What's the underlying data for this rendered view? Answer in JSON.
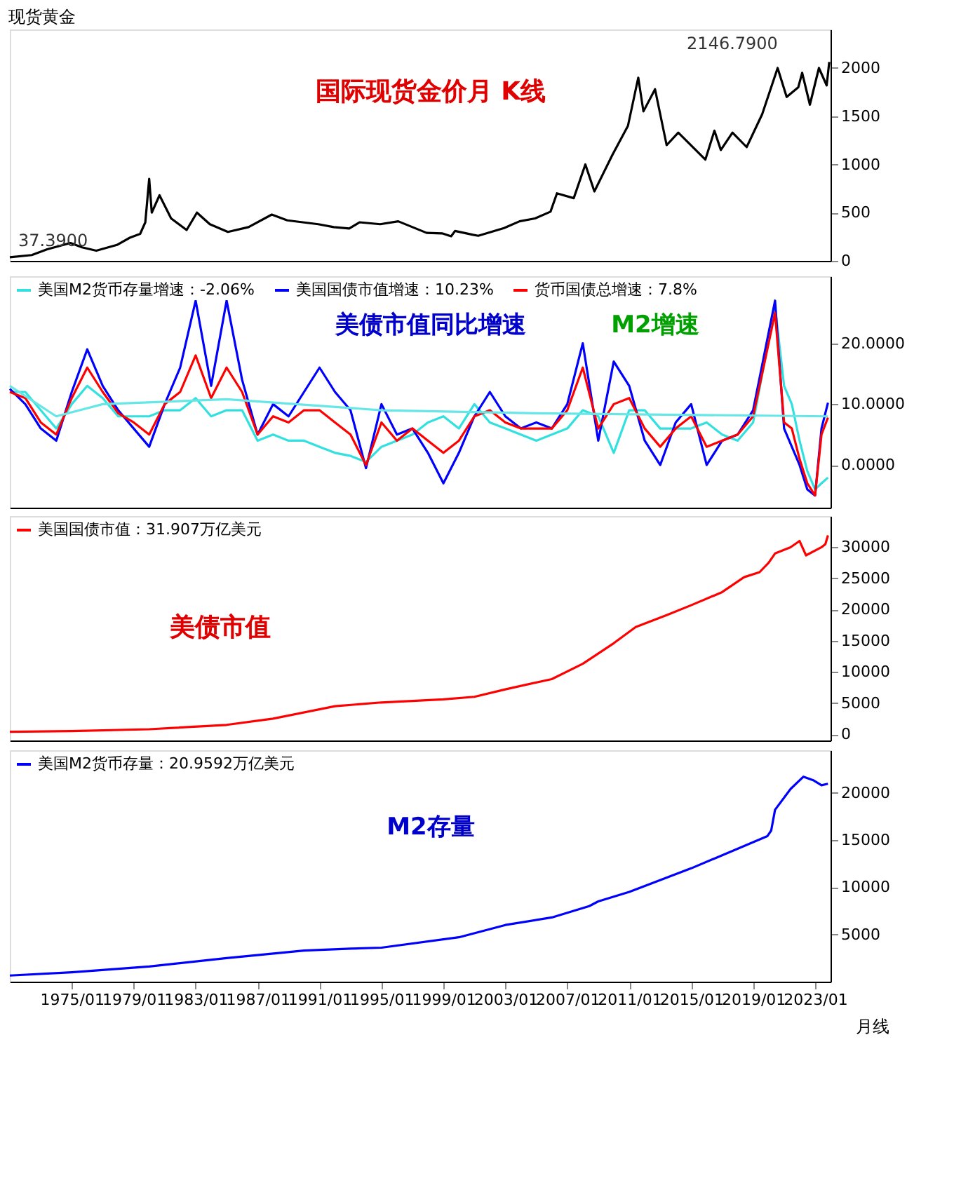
{
  "chart_data": [
    {
      "type": "line",
      "title": "现货黄金",
      "xlim": [
        "1971-01",
        "2024-01"
      ],
      "ylim": [
        0,
        2400
      ],
      "yticks": [
        0,
        500,
        1000,
        1500,
        2000
      ],
      "tick_labels": "y",
      "grid": false,
      "legend": false,
      "annotations": [
        "2146.7900",
        {
          "text": "37.3900",
          "x": "1971-01",
          "y": 37.39
        },
        "国际现货金价月 K线"
      ],
      "series": [
        {
          "color": "#000000",
          "x": [
            "1971-01",
            "1972-06",
            "1973-06",
            "1974-12",
            "1975-09",
            "1976-08",
            "1977-12",
            "1978-10",
            "1979-06",
            "1979-10",
            "1980-01",
            "1980-03",
            "1980-09",
            "1981-06",
            "1982-06",
            "1983-02",
            "1983-12",
            "1985-02",
            "1986-06",
            "1987-12",
            "1988-12",
            "1989-12",
            "1990-12",
            "1991-12",
            "1992-12",
            "1993-08",
            "1994-12",
            "1996-02",
            "1997-12",
            "1998-12",
            "1999-07",
            "1999-10",
            "2000-12",
            "2001-04",
            "2002-12",
            "2003-12",
            "2004-12",
            "2005-12",
            "2006-05",
            "2007-06",
            "2008-03",
            "2008-10",
            "2009-12",
            "2010-12",
            "2011-08",
            "2011-12",
            "2012-09",
            "2013-06",
            "2014-03",
            "2015-12",
            "2016-07",
            "2016-12",
            "2017-09",
            "2018-08",
            "2019-08",
            "2020-08",
            "2021-03",
            "2021-12",
            "2022-03",
            "2022-09",
            "2023-04",
            "2023-10",
            "2023-12"
          ],
          "values": [
            37.39,
            60,
            120,
            185,
            140,
            105,
            165,
            240,
            280,
            400,
            850,
            500,
            680,
            440,
            320,
            500,
            380,
            300,
            350,
            480,
            420,
            400,
            380,
            350,
            335,
            400,
            380,
            410,
            290,
            285,
            255,
            310,
            270,
            260,
            340,
            410,
            440,
            510,
            700,
            650,
            1000,
            720,
            1100,
            1400,
            1900,
            1550,
            1780,
            1200,
            1330,
            1050,
            1350,
            1150,
            1330,
            1180,
            1520,
            2000,
            1700,
            1800,
            1950,
            1620,
            2000,
            1820,
            2063
          ]
        }
      ]
    },
    {
      "type": "line",
      "xlim": [
        "1971-01",
        "2024-01"
      ],
      "ylim": [
        -7,
        31
      ],
      "yticks": [
        {
          "value": 0,
          "label": "0.0000"
        },
        {
          "value": 10,
          "label": "10.0000"
        },
        {
          "value": 20,
          "label": "20.0000"
        }
      ],
      "tick_labels": "y",
      "grid": false,
      "legend": "top left",
      "annotations": [
        "美债市值同比增速",
        "M2增速"
      ],
      "x": [
        "1971-01",
        "1972-01",
        "1973-01",
        "1974-01",
        "1975-01",
        "1976-01",
        "1977-01",
        "1978-01",
        "1979-01",
        "1980-01",
        "1981-01",
        "1982-01",
        "1983-01",
        "1984-01",
        "1985-01",
        "1986-01",
        "1987-01",
        "1988-01",
        "1989-01",
        "1990-01",
        "1991-01",
        "1992-01",
        "1993-01",
        "1994-01",
        "1995-01",
        "1996-01",
        "1997-01",
        "1998-01",
        "1999-01",
        "2000-01",
        "2001-01",
        "2002-01",
        "2003-01",
        "2004-01",
        "2005-01",
        "2006-01",
        "2007-01",
        "2008-01",
        "2009-01",
        "2010-01",
        "2011-01",
        "2012-01",
        "2013-01",
        "2014-01",
        "2015-01",
        "2016-01",
        "2017-01",
        "2018-01",
        "2019-01",
        "2020-06",
        "2021-01",
        "2021-07",
        "2022-01",
        "2022-07",
        "2023-01",
        "2023-06",
        "2023-11"
      ],
      "series": [
        {
          "name": "美国M2货币存量增速：-2.06%",
          "color": "#33e0e0",
          "values": [
            12,
            12,
            9,
            6,
            10,
            13,
            11,
            8,
            8,
            8,
            9,
            9,
            11,
            8,
            9,
            9,
            4,
            5,
            4,
            4,
            3,
            2,
            1.5,
            0.5,
            3,
            4,
            5,
            7,
            8,
            6,
            10,
            7,
            6,
            5,
            4,
            5,
            6,
            9,
            8,
            2,
            9,
            9,
            6,
            6,
            6,
            7,
            5,
            4,
            7,
            26,
            13,
            10,
            4,
            -1,
            -4,
            -3,
            -2.06
          ]
        },
        {
          "name": "美国国债市值增速：10.23%",
          "color": "#0000ff",
          "values": [
            12.5,
            10,
            6,
            4,
            12,
            19,
            13,
            9,
            6,
            3,
            10,
            16,
            27,
            13,
            27,
            14,
            5,
            10,
            8,
            12,
            16,
            12,
            9,
            -0.5,
            10,
            5,
            6,
            2,
            -3,
            2,
            8,
            12,
            8,
            6,
            7,
            6,
            10,
            20,
            4,
            17,
            13,
            4,
            0,
            7,
            10,
            0,
            4,
            5,
            9,
            27,
            6,
            3,
            0,
            -4,
            -5,
            6,
            10.23
          ]
        },
        {
          "name": "货币国债总增速：7.8%",
          "color": "#ff0000",
          "values": [
            12,
            11,
            7,
            5,
            11,
            16,
            12,
            8.5,
            7,
            5,
            10,
            12,
            18,
            11,
            16,
            12,
            5,
            8,
            7,
            9,
            9,
            7,
            5,
            0,
            7,
            4,
            6,
            4,
            2,
            4,
            8,
            9,
            7,
            6,
            6,
            6,
            9,
            16,
            6,
            10,
            11,
            6,
            3,
            6,
            8,
            3,
            4,
            5,
            8,
            25,
            7,
            6,
            1,
            -3,
            -5,
            5,
            7.8
          ]
        },
        {
          "color": "#66e6e6",
          "x": [
            "1971-01",
            "1974-01",
            "1977-01",
            "1985-01",
            "1995-01",
            "2005-01",
            "2023-11"
          ],
          "values": [
            13,
            8,
            10,
            10.8,
            9,
            8.5,
            8
          ]
        }
      ]
    },
    {
      "type": "line",
      "xlim": [
        "1971-01",
        "2024-01"
      ],
      "ylim": [
        -1000,
        35000
      ],
      "yticks": [
        0,
        5000,
        10000,
        15000,
        20000,
        25000,
        30000
      ],
      "tick_labels": "y",
      "grid": false,
      "legend": "top left",
      "annotations": [
        "美债市值"
      ],
      "series": [
        {
          "name": "美国国债市值：31.907万亿美元",
          "color": "#ff0000",
          "x": [
            "1971-01",
            "1975-01",
            "1980-01",
            "1985-01",
            "1988-01",
            "1992-01",
            "1995-01",
            "1999-01",
            "2001-01",
            "2003-01",
            "2006-01",
            "2008-01",
            "2010-01",
            "2011-06",
            "2013-06",
            "2015-01",
            "2017-01",
            "2018-06",
            "2019-06",
            "2020-01",
            "2020-06",
            "2021-06",
            "2022-01",
            "2022-06",
            "2023-06",
            "2023-09",
            "2023-11"
          ],
          "values": [
            400,
            500,
            800,
            1500,
            2500,
            4500,
            5100,
            5600,
            6000,
            7200,
            8850,
            11300,
            14600,
            17200,
            19100,
            20700,
            22800,
            25200,
            26000,
            27500,
            29000,
            30000,
            31000,
            28700,
            30000,
            30500,
            31907
          ]
        }
      ]
    },
    {
      "type": "line",
      "xlim": [
        "1971-01",
        "2024-01"
      ],
      "ylim": [
        0,
        24500
      ],
      "yticks": [
        5000,
        10000,
        15000,
        20000
      ],
      "xticks": [
        {
          "value": "1975-01",
          "label": "1975/01"
        },
        {
          "value": "1979-01",
          "label": "1979/01"
        },
        {
          "value": "1983-01",
          "label": "1983/01"
        },
        {
          "value": "1987-01",
          "label": "1987/01"
        },
        {
          "value": "1991-01",
          "label": "1991/01"
        },
        {
          "value": "1995-01",
          "label": "1995/01"
        },
        {
          "value": "1999-01",
          "label": "1999/01"
        },
        {
          "value": "2003-01",
          "label": "2003/01"
        },
        {
          "value": "2007-01",
          "label": "2007/01"
        },
        {
          "value": "2011-01",
          "label": "2011/01"
        },
        {
          "value": "2015-01",
          "label": "2015/01"
        },
        {
          "value": "2019-01",
          "label": "2019/01"
        },
        {
          "value": "2023-01",
          "label": "2023/01"
        }
      ],
      "grid": false,
      "legend": "top left",
      "annotations": [
        "M2存量",
        "月线"
      ],
      "series": [
        {
          "name": "美国M2货币存量：20.9592万亿美元",
          "color": "#0000ff",
          "x": [
            "1971-01",
            "1975-01",
            "1980-01",
            "1985-01",
            "1990-01",
            "1993-01",
            "1995-01",
            "2000-01",
            "2003-01",
            "2006-01",
            "2008-06",
            "2009-01",
            "2011-01",
            "2015-01",
            "2019-12",
            "2020-03",
            "2020-06",
            "2021-06",
            "2022-04",
            "2022-12",
            "2023-06",
            "2023-11"
          ],
          "values": [
            650,
            1000,
            1600,
            2500,
            3300,
            3500,
            3600,
            4700,
            6000,
            6800,
            8000,
            8500,
            9500,
            12000,
            15400,
            16000,
            18200,
            20400,
            21700,
            21300,
            20800,
            20959.2
          ]
        }
      ]
    }
  ]
}
